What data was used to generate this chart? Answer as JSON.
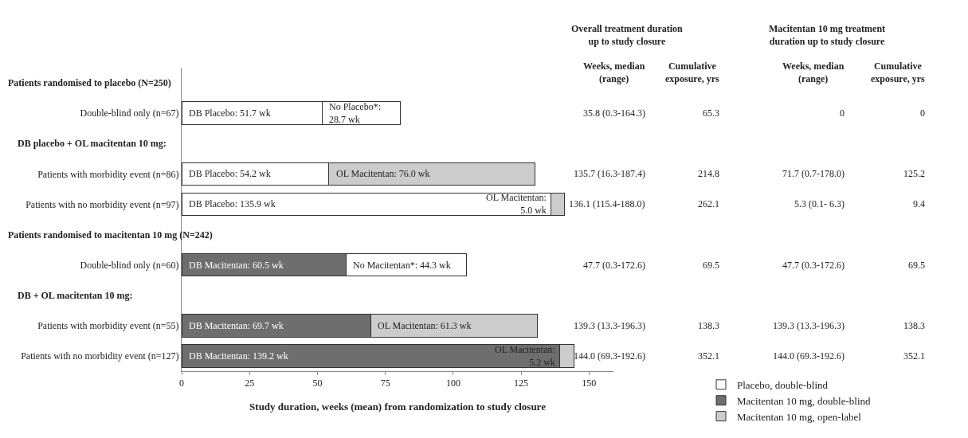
{
  "chart_data": {
    "type": "bar",
    "orientation": "horizontal",
    "stacked": true,
    "categories": [
      null,
      "Double-blind only (n=67)",
      null,
      "Patients with morbidity event (n=86)",
      "Patients with no morbidity event (n=97)",
      null,
      "Double-blind only (n=60)",
      null,
      "Patients with morbidity event (n=55)",
      "Patients with no morbidity event (n=127)"
    ],
    "series": [
      {
        "name": "Placebo, double-blind",
        "color": "#ffffff",
        "values": [
          null,
          51.7,
          null,
          54.2,
          135.9,
          null,
          null,
          null,
          null,
          null
        ],
        "value_labels": [
          null,
          "DB Placebo: 51.7 wk",
          null,
          "DB Placebo: 54.2 wk",
          "DB Placebo: 135.9 wk",
          null,
          null,
          null,
          null,
          null
        ]
      },
      {
        "name": "Macitentan 10 mg, double-blind",
        "color": "#6e6e6e",
        "values": [
          null,
          null,
          null,
          null,
          null,
          null,
          60.5,
          null,
          69.7,
          139.2
        ],
        "value_labels": [
          null,
          null,
          null,
          null,
          null,
          null,
          "DB Macitentan: 60.5 wk",
          null,
          "DB Macitentan: 69.7 wk",
          "DB Macitentan: 139.2 wk"
        ]
      },
      {
        "name": "Macitentan 10 mg, open-label",
        "color": "#cccccc",
        "values": [
          null,
          null,
          null,
          76.0,
          5.0,
          null,
          null,
          null,
          61.3,
          5.2
        ],
        "value_labels": [
          null,
          null,
          null,
          "OL Macitentan: 76.0 wk",
          "OL Macitentan:\n5.0 wk",
          null,
          null,
          null,
          "OL Macitentan: 61.3 wk",
          "OL Macitentan:\n5.2 wk"
        ]
      },
      {
        "color": "#ffffff",
        "values": [
          null,
          28.7,
          null,
          null,
          null,
          null,
          44.3,
          null,
          null,
          null
        ],
        "value_labels": [
          null,
          "No Placebo*:\n28.7 wk",
          null,
          null,
          null,
          null,
          "No Macitentan*: 44.3 wk",
          null,
          null,
          null
        ]
      }
    ],
    "xlabel": "Study duration, weeks (mean) from randomization to study closure",
    "xlim": [
      0,
      159
    ],
    "xticks": [
      0,
      25,
      50,
      75,
      100,
      125,
      150
    ],
    "grid": false,
    "legend": "bottom right",
    "annotations": [
      "Patients randomised to placebo (N=250)",
      "DB placebo + OL macitentan 10 mg:",
      "Patients randomised to macitentan 10 mg (N=242)",
      "DB + OL macitentan 10 mg:",
      "Overall treatment duration\nup to study closure",
      "Macitentan 10 mg treatment\nduration up to study closure",
      "Weeks, median\n(range)",
      "Cumulative\nexposure, yrs",
      "Weeks, median\n(range)",
      "Cumulative\nexposure, yrs",
      "35.8 (0.3-164.3)",
      "65.3",
      "0",
      "0",
      "135.7 (16.3-187.4)",
      "214.8",
      "71.7 (0.7-178.0)",
      "125.2",
      "136.1 (115.4-188.0)",
      "262.1",
      "5.3 (0.1- 6.3)",
      "9.4",
      "47.7 (0.3-172.6)",
      "69.5",
      "47.7 (0.3-172.6)",
      "69.5",
      "139.3 (13.3-196.3)",
      "138.3",
      "139.3 (13.3-196.3)",
      "138.3",
      "144.0 (69.3-192.6)",
      "352.1",
      "144.0 (69.3-192.6)",
      "352.1"
    ]
  }
}
